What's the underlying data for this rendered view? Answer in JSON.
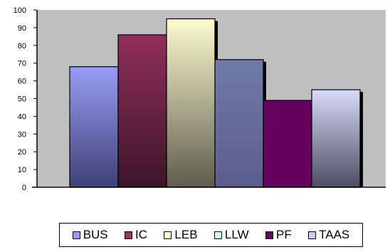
{
  "chart_data": {
    "type": "bar",
    "categories": [
      "BUS",
      "IC",
      "LEB",
      "LLW",
      "PF",
      "TAAS"
    ],
    "values": [
      68,
      86,
      95,
      72,
      49,
      55
    ],
    "ylim": [
      0,
      100
    ],
    "yticks": [
      0,
      10,
      20,
      30,
      40,
      50,
      60,
      70,
      80,
      90,
      100
    ],
    "grid": false,
    "legend_position": "bottom",
    "plot_background": "#c0c0c0",
    "colors": {
      "BUS": "#9999ff",
      "IC": "#993366",
      "LEB": "#ffffcc",
      "LLW": "#ccffff",
      "PF": "#660066",
      "TAAS": "#ccccff"
    },
    "bar_colors": {
      "BUS": [
        "#9a9cf4",
        "#3f4178"
      ],
      "IC": [
        "#8f2e5a",
        "#3e1528"
      ],
      "LEB": [
        "#fdfbcf",
        "#5e5d4e"
      ],
      "LLW": [
        "#727aa8",
        "#5a5e8c"
      ],
      "PF": [
        "#65005f",
        "#65005f"
      ],
      "TAAS": [
        "#d9dbfb",
        "#4c4d60"
      ]
    },
    "legend": [
      {
        "label": "BUS",
        "color": "#9999ff"
      },
      {
        "label": "IC",
        "color": "#993366"
      },
      {
        "label": "LEB",
        "color": "#ffffcc"
      },
      {
        "label": "LLW",
        "color": "#ccffff"
      },
      {
        "label": "PF",
        "color": "#660066"
      },
      {
        "label": "TAAS",
        "color": "#ccccff"
      }
    ]
  }
}
